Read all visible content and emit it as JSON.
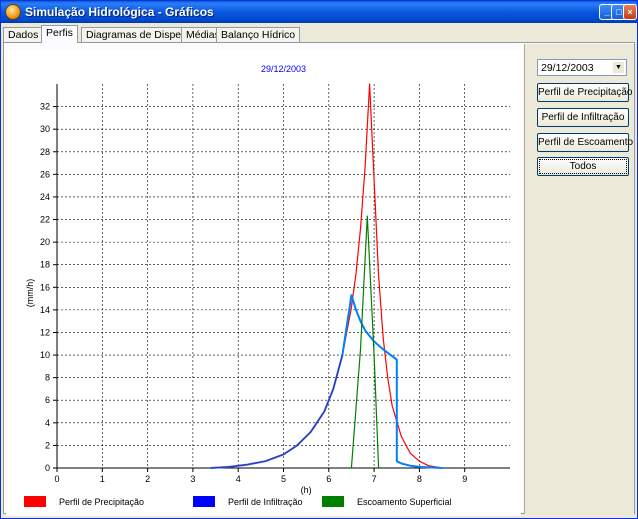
{
  "window": {
    "title": "Simulação Hidrológica - Gráficos",
    "buttons": {
      "minimize": "_",
      "maximize": "□",
      "close": "×"
    }
  },
  "tabs": [
    {
      "label": "Dados",
      "active": false
    },
    {
      "label": "Perfis",
      "active": true
    },
    {
      "label": "Diagramas de Dispersão",
      "active": false
    },
    {
      "label": "Médias",
      "active": false
    },
    {
      "label": "Balanço Hídrico",
      "active": false
    }
  ],
  "controls": {
    "date_select": {
      "value": "29/12/2003"
    },
    "buttons": [
      {
        "label": "Perfil de Precipitação"
      },
      {
        "label": "Perfil de Infiltração"
      },
      {
        "label": "Perfil de Escoamento"
      },
      {
        "label": "Todos"
      }
    ]
  },
  "chart_data": {
    "type": "line",
    "title": "29/12/2003",
    "xlabel": "(h)",
    "ylabel": "(mm/h)",
    "xlim": [
      0,
      10
    ],
    "ylim": [
      0,
      34
    ],
    "xticks": [
      "0",
      "1",
      "2",
      "3",
      "4",
      "5",
      "6",
      "7",
      "8",
      "9"
    ],
    "yticks": [
      "0",
      "2",
      "4",
      "6",
      "8",
      "10",
      "12",
      "14",
      "16",
      "18",
      "20",
      "22",
      "24",
      "26",
      "28",
      "30",
      "32"
    ],
    "grid": true,
    "legend_position": "bottom",
    "series": [
      {
        "name": "Perfil de Precipitação",
        "color": "#ff0000",
        "x": [
          3.4,
          3.8,
          4.2,
          4.6,
          5.0,
          5.3,
          5.6,
          5.9,
          6.1,
          6.3,
          6.5,
          6.6,
          6.7,
          6.8,
          6.9,
          7.0,
          7.1,
          7.2,
          7.3,
          7.4,
          7.6,
          7.8,
          8.0,
          8.2,
          8.5
        ],
        "y": [
          0.0,
          0.1,
          0.3,
          0.6,
          1.2,
          2.0,
          3.2,
          5.0,
          7.0,
          10.0,
          14.2,
          17.2,
          21.2,
          26.5,
          34.0,
          25.5,
          17.0,
          11.5,
          8.0,
          5.5,
          2.8,
          1.3,
          0.6,
          0.2,
          0.0
        ]
      },
      {
        "name": "Perfil de Infiltração",
        "color": "#0000ff",
        "x": [
          3.4,
          3.8,
          4.2,
          4.6,
          5.0,
          5.3,
          5.6,
          5.9,
          6.1,
          6.3,
          6.5,
          6.6,
          6.7,
          6.8,
          7.0,
          7.2,
          7.4,
          7.5,
          7.5,
          7.6,
          7.8,
          8.0,
          8.2,
          8.5
        ],
        "y": [
          0.0,
          0.1,
          0.3,
          0.6,
          1.2,
          2.0,
          3.2,
          5.0,
          7.0,
          10.0,
          15.3,
          14.0,
          13.0,
          12.2,
          11.2,
          10.5,
          9.9,
          9.6,
          0.6,
          0.4,
          0.2,
          0.1,
          0.05,
          0.0
        ]
      },
      {
        "name": "Escoamento Superficial",
        "color": "#008000",
        "x": [
          6.5,
          6.7,
          6.85,
          7.0,
          7.1
        ],
        "y": [
          0.0,
          10.5,
          22.3,
          10.0,
          0.0
        ]
      }
    ]
  }
}
